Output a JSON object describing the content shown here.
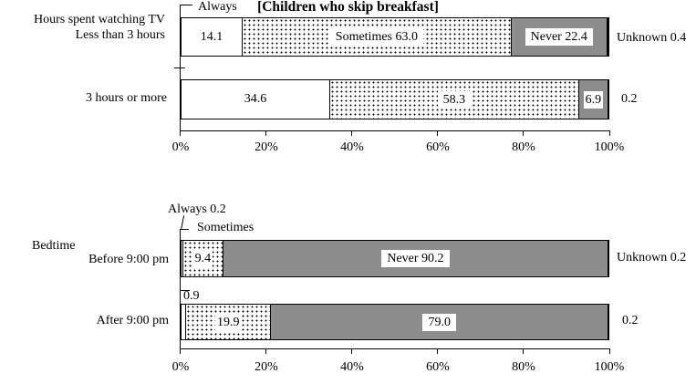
{
  "section_title": "[Children who skip breakfast]",
  "ticks": [
    "0%",
    "20%",
    "40%",
    "60%",
    "80%",
    "100%"
  ],
  "charts": {
    "tv": {
      "axis_title": "Hours spent watching TV",
      "always_label": "Always",
      "rows": {
        "r1": {
          "category": "Less than 3 hours",
          "always": "14.1",
          "sometimes": "Sometimes 63.0",
          "never": "Never 22.4",
          "unknown": "Unknown 0.4"
        },
        "r2": {
          "category": "3 hours or more",
          "always": "34.6",
          "sometimes": "58.3",
          "never": "6.9",
          "unknown": "0.2"
        }
      }
    },
    "bedtime": {
      "axis_title": "Bedtime",
      "always_callout": "Always 0.2",
      "sometimes_callout": "Sometimes",
      "rows": {
        "r1": {
          "category": "Before 9:00 pm",
          "sometimes": "9.4",
          "never": "Never 90.2",
          "unknown": "Unknown 0.2"
        },
        "r2": {
          "category": "After 9:00 pm",
          "always_callout": "0.9",
          "sometimes": "19.9",
          "never": "79.0",
          "unknown": "0.2"
        }
      }
    }
  },
  "chart_data": [
    {
      "type": "bar",
      "subtype": "horizontal-stacked-100pct",
      "title": "Hours spent watching TV",
      "categories": [
        "Less than 3 hours",
        "3 hours or more"
      ],
      "series": [
        {
          "name": "Always",
          "values": [
            14.1,
            34.6
          ]
        },
        {
          "name": "Sometimes",
          "values": [
            63.0,
            58.3
          ]
        },
        {
          "name": "Never",
          "values": [
            22.4,
            6.9
          ]
        },
        {
          "name": "Unknown",
          "values": [
            0.4,
            0.2
          ]
        }
      ],
      "xlim": [
        0,
        100
      ],
      "xticks": [
        "0%",
        "20%",
        "40%",
        "60%",
        "80%",
        "100%"
      ],
      "legend_position": "inline-labels",
      "grid": false
    },
    {
      "type": "bar",
      "subtype": "horizontal-stacked-100pct",
      "title": "[Children who skip breakfast]",
      "group_label": "Bedtime",
      "categories": [
        "Before 9:00 pm",
        "After 9:00 pm"
      ],
      "series": [
        {
          "name": "Always",
          "values": [
            0.2,
            0.9
          ]
        },
        {
          "name": "Sometimes",
          "values": [
            9.4,
            19.9
          ]
        },
        {
          "name": "Never",
          "values": [
            90.2,
            79.0
          ]
        },
        {
          "name": "Unknown",
          "values": [
            0.2,
            0.2
          ]
        }
      ],
      "xlim": [
        0,
        100
      ],
      "xticks": [
        "0%",
        "20%",
        "40%",
        "60%",
        "80%",
        "100%"
      ],
      "legend_position": "inline-labels",
      "grid": false
    }
  ]
}
